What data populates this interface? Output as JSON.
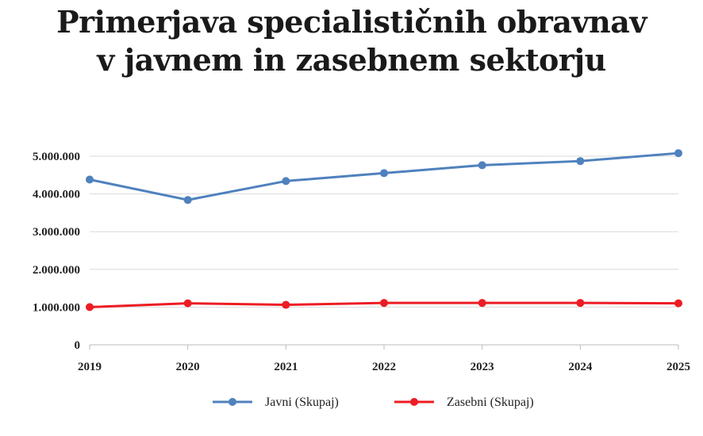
{
  "chart_data": {
    "type": "line",
    "title": [
      "Primerjava specialističnih obravnav",
      "v javnem in zasebnem sektorju"
    ],
    "xlabel": "",
    "ylabel": "",
    "categories": [
      "2019",
      "2020",
      "2021",
      "2022",
      "2023",
      "2024",
      "2025"
    ],
    "ylim": [
      0,
      5000000
    ],
    "yticks": [
      0,
      1000000,
      2000000,
      3000000,
      4000000,
      5000000
    ],
    "ytick_labels": [
      "0",
      "1.000.000",
      "2.000.000",
      "3.000.000",
      "4.000.000",
      "5.000.000"
    ],
    "grid": true,
    "legend_position": "bottom",
    "series": [
      {
        "name": "Javni (Skupaj)",
        "color": "#4f81bd",
        "values": [
          4380000,
          3840000,
          4340000,
          4550000,
          4760000,
          4870000,
          5080000
        ]
      },
      {
        "name": "Zasebni (Skupaj)",
        "color": "#ed1c24",
        "values": [
          1000000,
          1100000,
          1060000,
          1110000,
          1110000,
          1110000,
          1100000
        ]
      }
    ]
  }
}
